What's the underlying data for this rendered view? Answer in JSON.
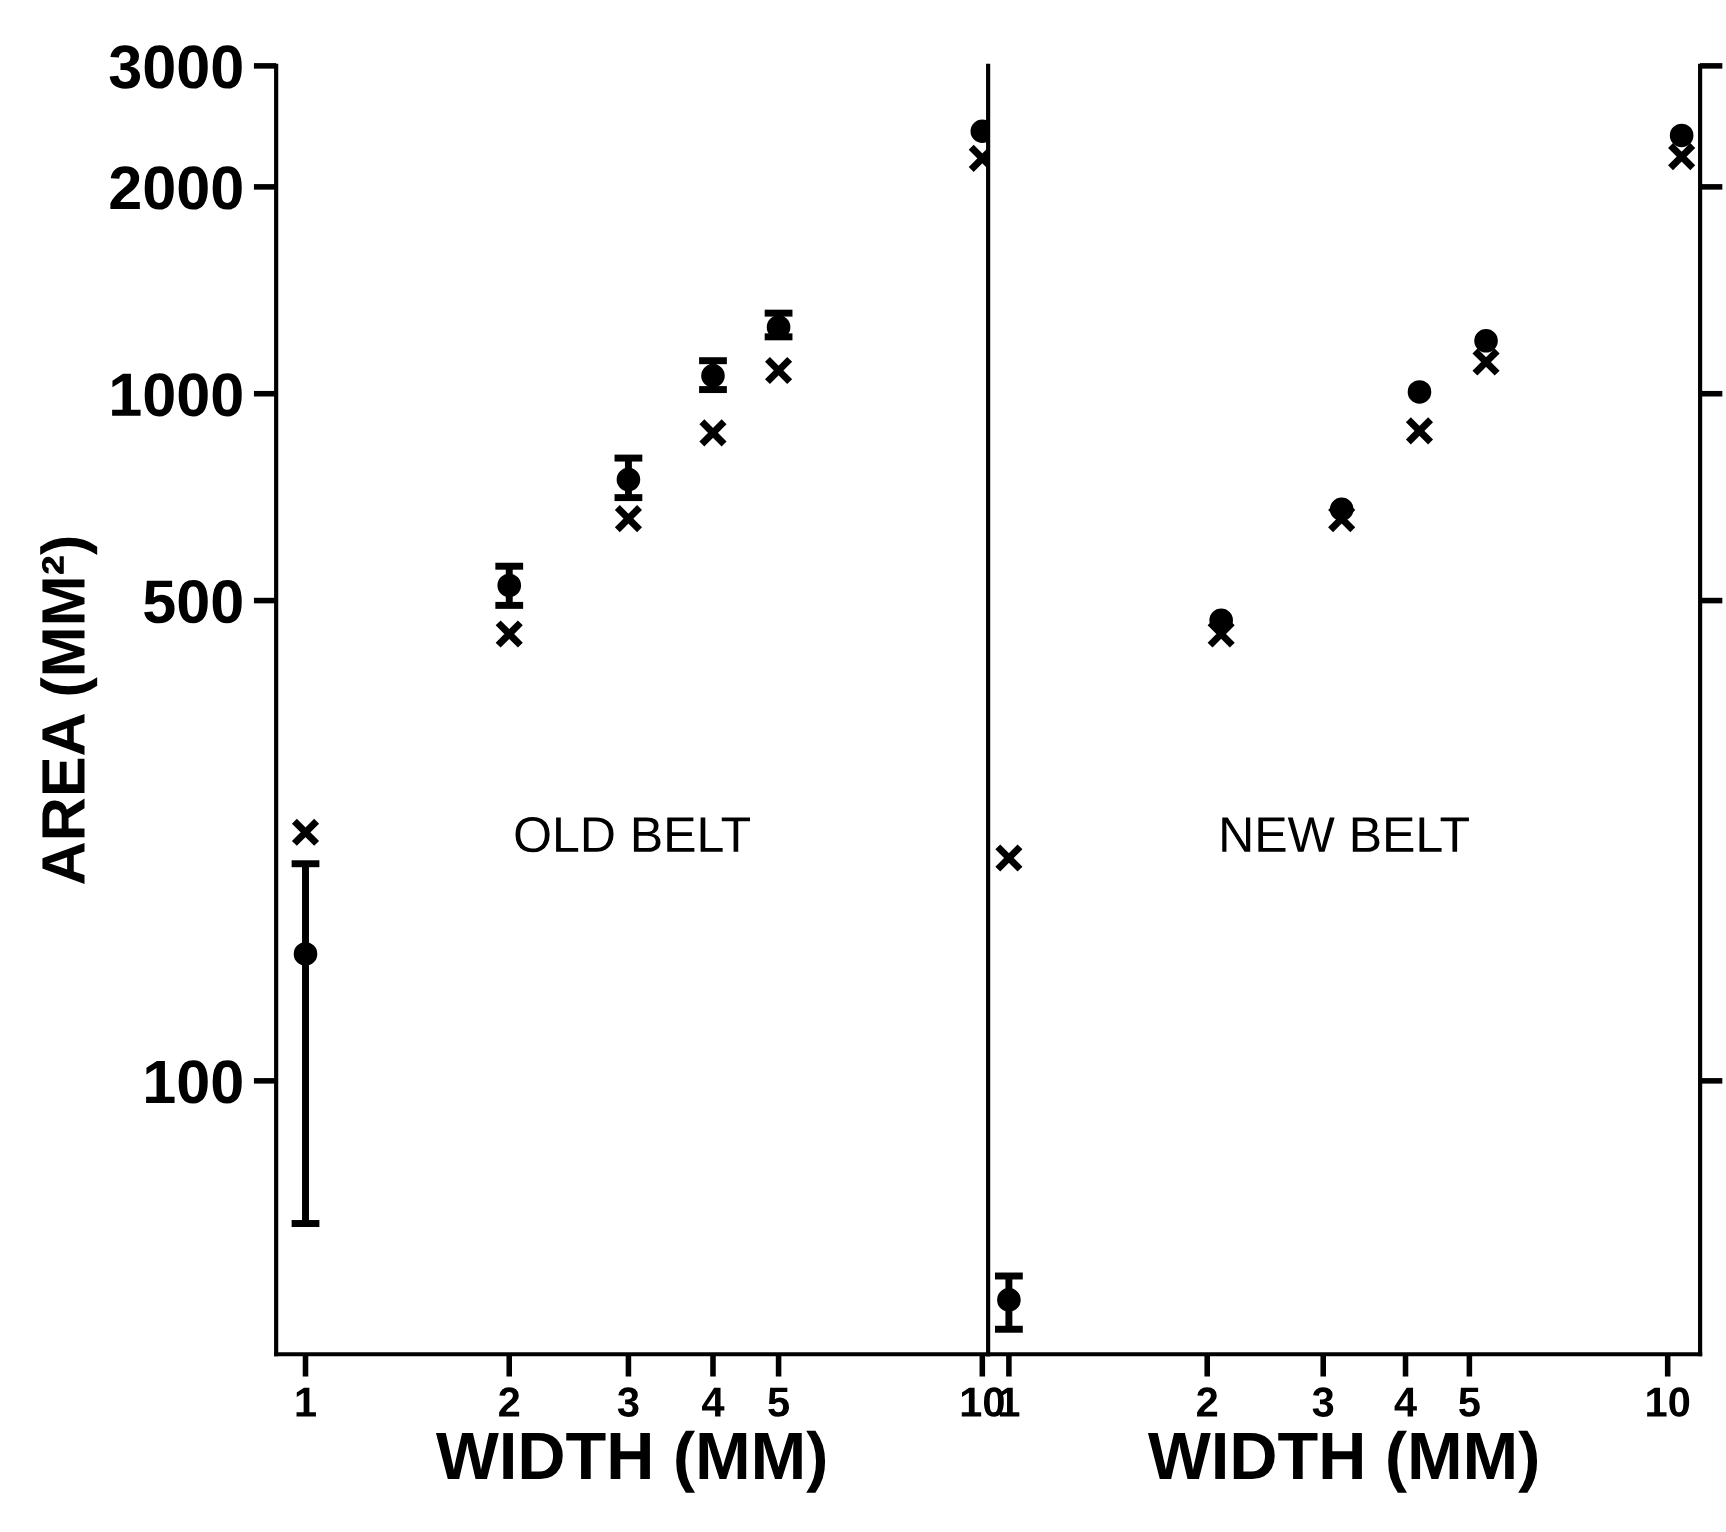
{
  "chart_data": [
    {
      "type": "scatter",
      "ylabel": "AREA (MM²)",
      "xlabel": "WIDTH (MM)",
      "log": "xy",
      "xlim": [
        0.905,
        10.2
      ],
      "ylim": [
        40,
        3000
      ],
      "xticks": [
        1,
        2,
        3,
        4,
        5,
        10
      ],
      "yticks": [
        100,
        500,
        1000,
        2000,
        3000
      ],
      "annotations": [
        "OLD BELT"
      ],
      "series": [
        {
          "color": "#000000",
          "marker": "cross",
          "x": [
            1,
            2,
            3,
            4,
            5,
            10
          ],
          "values": [
            230,
            447,
            658,
            877,
            1081,
            2200
          ]
        },
        {
          "color": "#000000",
          "marker": "circle",
          "x": [
            1,
            2,
            3,
            4,
            5,
            10
          ],
          "values": [
            153,
            526,
            750,
            1062,
            1250,
            2410
          ],
          "errors": [
            [
              62,
              207
            ],
            [
              492,
              561
            ],
            [
              706,
              806
            ],
            [
              1014,
              1117
            ],
            [
              1210,
              1310
            ],
            null
          ]
        }
      ]
    },
    {
      "type": "scatter",
      "xlabel": "WIDTH (MM)",
      "log": "xy",
      "xlim": [
        0.93,
        11.2
      ],
      "ylim": [
        40,
        3000
      ],
      "xticks": [
        1,
        2,
        3,
        4,
        5,
        10
      ],
      "yticks": [
        {
          "value": 100,
          "label": null
        },
        {
          "value": 500,
          "label": null
        },
        {
          "value": 1000,
          "label": null
        },
        {
          "value": 2000,
          "label": null
        },
        {
          "value": 3000,
          "label": null
        }
      ],
      "tick_labels": "x",
      "annotations": [
        "NEW BELT"
      ],
      "series": [
        {
          "color": "#000000",
          "marker": "cross",
          "x": [
            1,
            2.1,
            3.2,
            4.2,
            5.3,
            10.5
          ],
          "values": [
            211,
            447,
            658,
            883,
            1112,
            2213
          ]
        },
        {
          "color": "#000000",
          "marker": "circle",
          "x": [
            1,
            2.1,
            3.2,
            4.2,
            5.3,
            10.5
          ],
          "values": [
            48,
            468,
            679,
            1006,
            1194,
            2376
          ],
          "errors": [
            [
              43.5,
              52
            ],
            null,
            null,
            null,
            null,
            null
          ]
        }
      ]
    }
  ]
}
